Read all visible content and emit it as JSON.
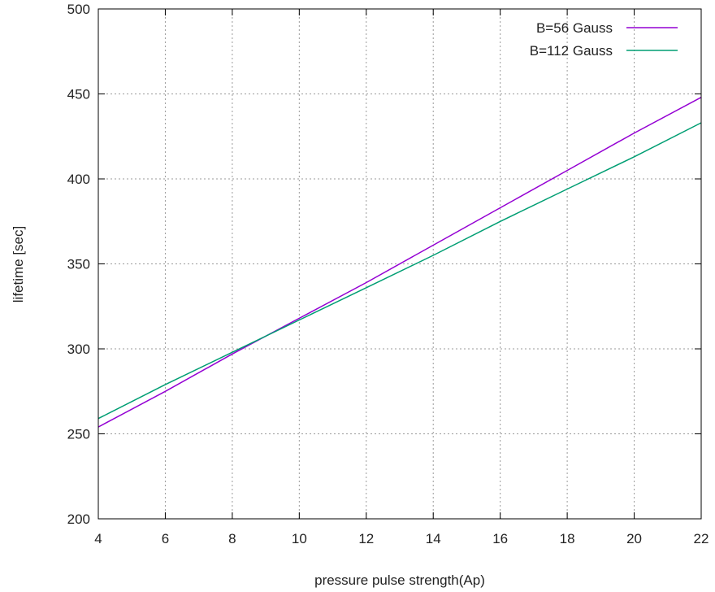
{
  "chart_data": {
    "type": "line",
    "title": "",
    "xlabel": "pressure pulse strength(Ap)",
    "ylabel": "lifetime [sec]",
    "xlim": [
      4,
      22
    ],
    "ylim": [
      200,
      500
    ],
    "xticks": [
      4,
      6,
      8,
      10,
      12,
      14,
      16,
      18,
      20,
      22
    ],
    "yticks": [
      200,
      250,
      300,
      350,
      400,
      450,
      500
    ],
    "xtick_labels": [
      "4",
      "6",
      "8",
      "10",
      "12",
      "14",
      "16",
      "18",
      "20",
      "22"
    ],
    "ytick_labels": [
      "200",
      "250",
      "300",
      "350",
      "400",
      "450",
      "500"
    ],
    "grid": true,
    "legend_position": "top-right",
    "series": [
      {
        "name": "B=56 Gauss",
        "color": "#9400d3",
        "x": [
          4,
          6,
          8,
          10,
          12,
          14,
          16,
          18,
          20,
          22
        ],
        "y": [
          254,
          275,
          297,
          318,
          339,
          361,
          383,
          405,
          427,
          448
        ]
      },
      {
        "name": "B=112 Gauss",
        "color": "#009e73",
        "x": [
          4,
          6,
          8,
          10,
          12,
          14,
          16,
          18,
          20,
          22
        ],
        "y": [
          259,
          279,
          298,
          317,
          336,
          355,
          375,
          394,
          413,
          433
        ]
      }
    ]
  }
}
